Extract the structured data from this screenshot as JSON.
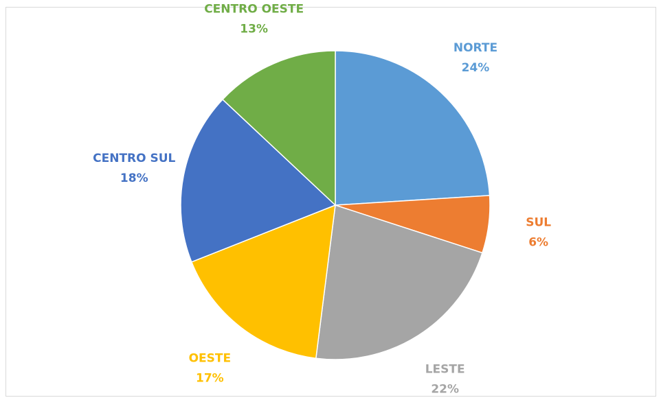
{
  "chart_data": {
    "type": "pie",
    "categories": [
      "NORTE",
      "SUL",
      "LESTE",
      "OESTE",
      "CENTRO SUL",
      "CENTRO OESTE"
    ],
    "values": [
      24,
      6,
      22,
      17,
      18,
      13
    ],
    "value_labels": [
      "24%",
      "6%",
      "22%",
      "17%",
      "18%",
      "13%"
    ],
    "colors": [
      "#5b9bd5",
      "#ed7d31",
      "#a5a5a5",
      "#ffc000",
      "#4472c4",
      "#70ad47"
    ]
  }
}
